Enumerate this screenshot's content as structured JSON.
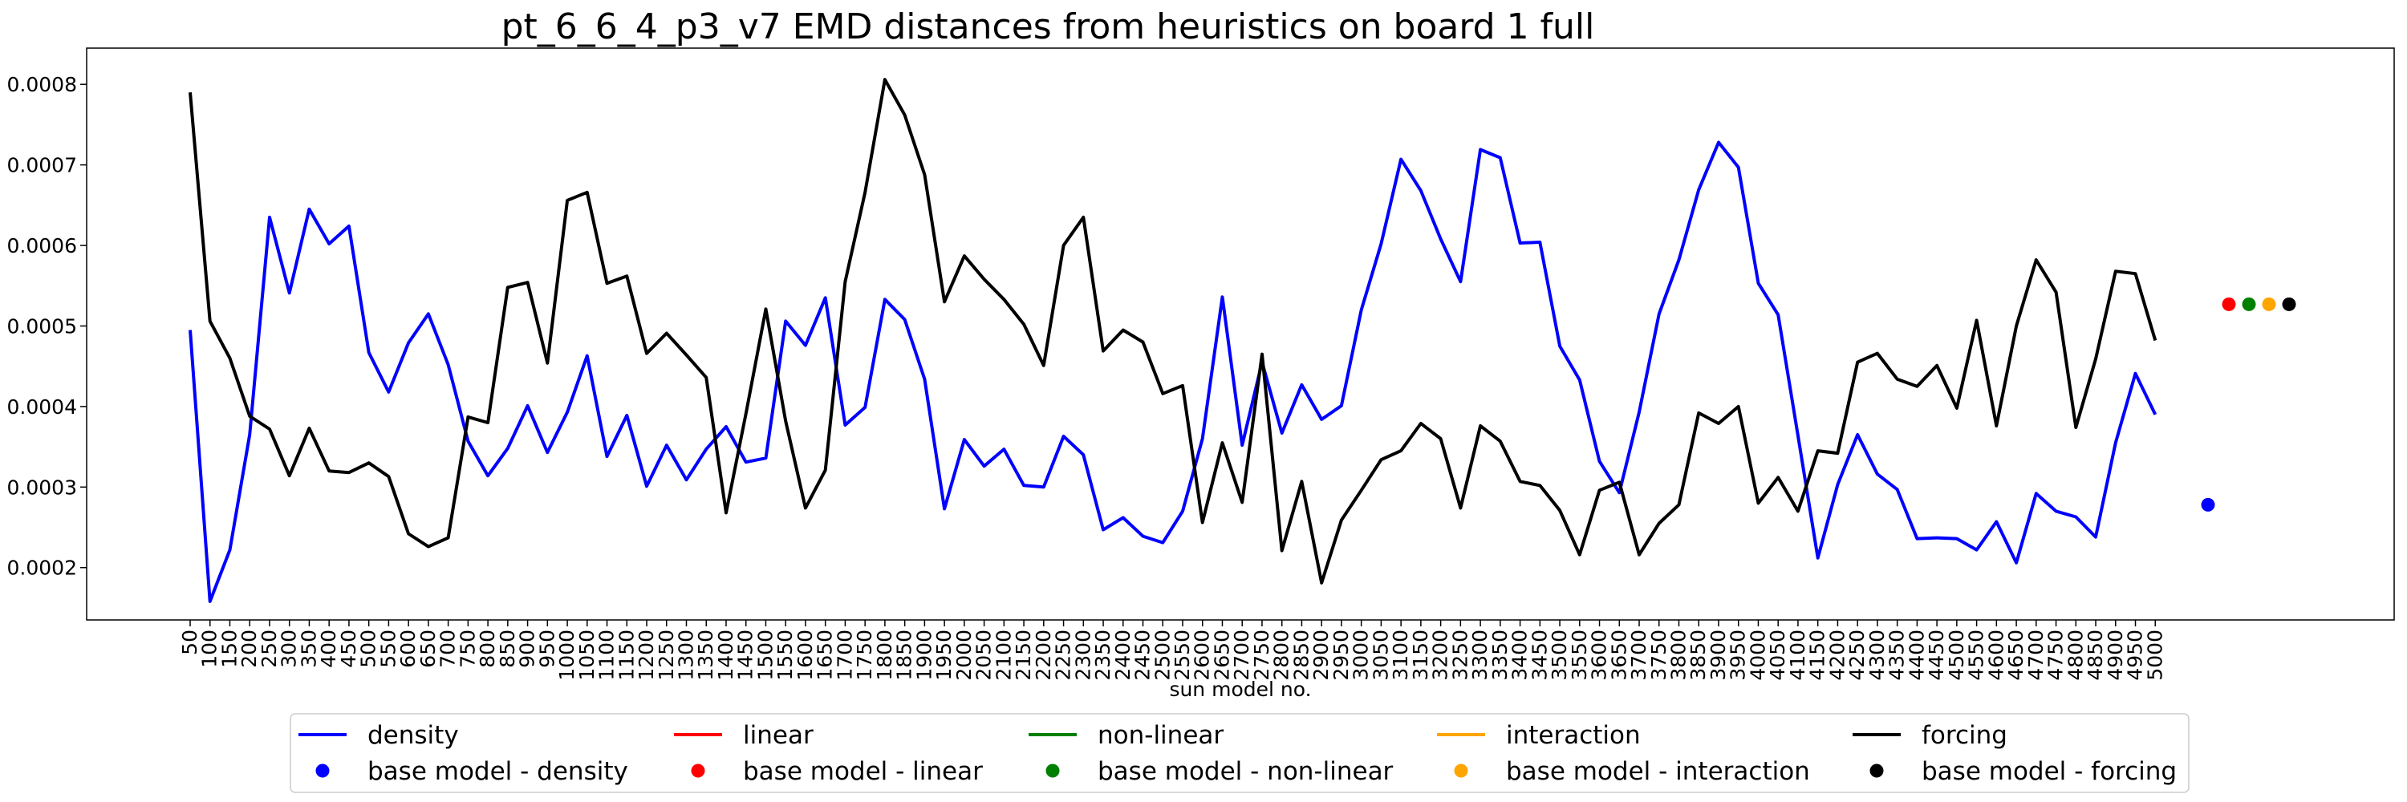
{
  "chart_data": {
    "type": "line",
    "title": "pt_6_6_4_p3_v7 EMD distances from heuristics on board 1 full",
    "xlabel": "sun model no.",
    "ylabel": "",
    "categories": [
      "50",
      "100",
      "150",
      "200",
      "250",
      "300",
      "350",
      "400",
      "450",
      "500",
      "550",
      "600",
      "650",
      "700",
      "750",
      "800",
      "850",
      "900",
      "950",
      "1000",
      "1050",
      "1100",
      "1150",
      "1200",
      "1250",
      "1300",
      "1350",
      "1400",
      "1450",
      "1500",
      "1550",
      "1600",
      "1650",
      "1700",
      "1750",
      "1800",
      "1850",
      "1900",
      "1950",
      "2000",
      "2050",
      "2100",
      "2150",
      "2200",
      "2250",
      "2300",
      "2350",
      "2400",
      "2450",
      "2500",
      "2550",
      "2600",
      "2650",
      "2700",
      "2750",
      "2800",
      "2850",
      "2900",
      "2950",
      "3000",
      "3050",
      "3100",
      "3150",
      "3200",
      "3250",
      "3300",
      "3350",
      "3400",
      "3450",
      "3500",
      "3550",
      "3600",
      "3650",
      "3700",
      "3750",
      "3800",
      "3850",
      "3900",
      "3950",
      "4000",
      "4050",
      "4100",
      "4150",
      "4200",
      "4250",
      "4300",
      "4350",
      "4400",
      "4450",
      "4500",
      "4550",
      "4600",
      "4650",
      "4700",
      "4750",
      "4800",
      "4850",
      "4900",
      "4950",
      "5000"
    ],
    "yticks": [
      "0.0002",
      "0.0003",
      "0.0004",
      "0.0005",
      "0.0006",
      "0.0007",
      "0.0008"
    ],
    "ylim": [
      0.000135,
      0.000845
    ],
    "grid": false,
    "legend_position": "lower-center-outside",
    "series": [
      {
        "name": "density",
        "color": "#0000ff",
        "values": [
          0.000495,
          0.000158,
          0.000222,
          0.000365,
          0.000635,
          0.000541,
          0.000645,
          0.000602,
          0.000624,
          0.000467,
          0.000418,
          0.000479,
          0.000515,
          0.000452,
          0.000357,
          0.000314,
          0.000348,
          0.000401,
          0.000343,
          0.000393,
          0.000463,
          0.000338,
          0.000389,
          0.000301,
          0.000352,
          0.000309,
          0.000347,
          0.000375,
          0.000331,
          0.000336,
          0.000506,
          0.000476,
          0.000535,
          0.000377,
          0.000399,
          0.000533,
          0.000508,
          0.000434,
          0.000273,
          0.000359,
          0.000326,
          0.000347,
          0.000302,
          0.0003,
          0.000363,
          0.00034,
          0.000247,
          0.000262,
          0.000239,
          0.000231,
          0.00027,
          0.00036,
          0.000536,
          0.000352,
          0.000455,
          0.000367,
          0.000427,
          0.000384,
          0.000401,
          0.00052,
          0.000602,
          0.000707,
          0.000668,
          0.000608,
          0.000555,
          0.000719,
          0.000709,
          0.000603,
          0.000604,
          0.000475,
          0.000433,
          0.000332,
          0.000293,
          0.000393,
          0.000515,
          0.000582,
          0.000669,
          0.000728,
          0.000697,
          0.000553,
          0.000514,
          0.000364,
          0.000212,
          0.000303,
          0.000365,
          0.000316,
          0.000297,
          0.000236,
          0.000237,
          0.000236,
          0.000222,
          0.000257,
          0.000206,
          0.000292,
          0.00027,
          0.000263,
          0.000238,
          0.000355,
          0.000441,
          0.00039
        ]
      },
      {
        "name": "forcing",
        "color": "#000000",
        "values": [
          0.00079,
          0.000506,
          0.00046,
          0.000388,
          0.000372,
          0.000314,
          0.000373,
          0.00032,
          0.000318,
          0.00033,
          0.000313,
          0.000242,
          0.000226,
          0.000237,
          0.000387,
          0.00038,
          0.000548,
          0.000554,
          0.000454,
          0.000656,
          0.000666,
          0.000553,
          0.000562,
          0.000466,
          0.000491,
          0.000464,
          0.000436,
          0.000268,
          0.000391,
          0.000521,
          0.000382,
          0.000274,
          0.000321,
          0.000555,
          0.000666,
          0.000806,
          0.000762,
          0.000688,
          0.00053,
          0.000587,
          0.000558,
          0.000533,
          0.000502,
          0.000451,
          0.0006,
          0.000635,
          0.000469,
          0.000495,
          0.00048,
          0.000416,
          0.000426,
          0.000256,
          0.000355,
          0.000281,
          0.000465,
          0.000221,
          0.000307,
          0.000181,
          0.000259,
          0.000296,
          0.000334,
          0.000345,
          0.000379,
          0.00036,
          0.000274,
          0.000376,
          0.000357,
          0.000307,
          0.000302,
          0.000271,
          0.000216,
          0.000296,
          0.000306,
          0.000216,
          0.000255,
          0.000278,
          0.000392,
          0.000379,
          0.0004,
          0.00028,
          0.000312,
          0.00027,
          0.000345,
          0.000342,
          0.000455,
          0.000466,
          0.000434,
          0.000425,
          0.000451,
          0.000398,
          0.000507,
          0.000376,
          0.0005,
          0.000582,
          0.000542,
          0.000374,
          0.000459,
          0.000568,
          0.000565,
          0.000482
        ]
      }
    ],
    "base_points": [
      {
        "name": "base model - density",
        "color": "#0000ff",
        "value": 0.000278
      },
      {
        "name": "base model - linear",
        "color": "#ff0000",
        "value": 0.000527
      },
      {
        "name": "base model - non-linear",
        "color": "#008000",
        "value": 0.000527
      },
      {
        "name": "base model - interaction",
        "color": "#ffa500",
        "value": 0.000527
      },
      {
        "name": "base model - forcing",
        "color": "#000000",
        "value": 0.000527
      }
    ],
    "legend": [
      {
        "label": "density",
        "kind": "line",
        "color": "#0000ff"
      },
      {
        "label": "linear",
        "kind": "line",
        "color": "#ff0000"
      },
      {
        "label": "non-linear",
        "kind": "line",
        "color": "#008000"
      },
      {
        "label": "interaction",
        "kind": "line",
        "color": "#ffa500"
      },
      {
        "label": "forcing",
        "kind": "line",
        "color": "#000000"
      },
      {
        "label": "base model - density",
        "kind": "dot",
        "color": "#0000ff"
      },
      {
        "label": "base model - linear",
        "kind": "dot",
        "color": "#ff0000"
      },
      {
        "label": "base model - non-linear",
        "kind": "dot",
        "color": "#008000"
      },
      {
        "label": "base model - interaction",
        "kind": "dot",
        "color": "#ffa500"
      },
      {
        "label": "base model - forcing",
        "kind": "dot",
        "color": "#000000"
      }
    ]
  }
}
